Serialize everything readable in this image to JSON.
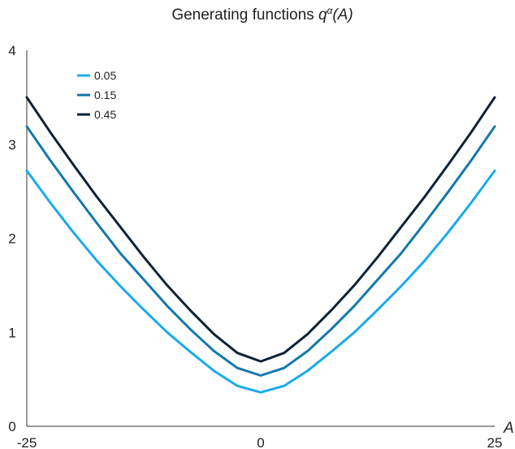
{
  "chart_data": {
    "type": "line",
    "title_main": "Generating functions ",
    "title_func": "q",
    "title_sup": "α",
    "title_arg": "(A)",
    "xlabel": "A",
    "ylabel": "",
    "xlim": [
      -25,
      25
    ],
    "ylim": [
      0,
      4
    ],
    "x_ticks": [
      "-25",
      "0",
      "25"
    ],
    "y_ticks": [
      "0",
      "1",
      "2",
      "3",
      "4"
    ],
    "grid": false,
    "legend_position": "top-left",
    "x": [
      -25,
      -22.5,
      -20,
      -17.5,
      -15,
      -12.5,
      -10,
      -7.5,
      -5,
      -2.5,
      0,
      2.5,
      5,
      7.5,
      10,
      12.5,
      15,
      17.5,
      20,
      22.5,
      25
    ],
    "series": [
      {
        "name": "0.05",
        "color": "#1aabe8",
        "values": [
          2.72,
          2.38,
          2.06,
          1.76,
          1.49,
          1.24,
          1.0,
          0.79,
          0.59,
          0.43,
          0.36,
          0.43,
          0.59,
          0.79,
          1.0,
          1.24,
          1.49,
          1.76,
          2.06,
          2.38,
          2.72
        ]
      },
      {
        "name": "0.15",
        "color": "#1478ad",
        "values": [
          3.19,
          2.83,
          2.49,
          2.16,
          1.84,
          1.56,
          1.28,
          1.03,
          0.8,
          0.62,
          0.54,
          0.62,
          0.8,
          1.03,
          1.28,
          1.56,
          1.84,
          2.16,
          2.49,
          2.83,
          3.19
        ]
      },
      {
        "name": "0.45",
        "color": "#0e2238",
        "values": [
          3.5,
          3.13,
          2.78,
          2.44,
          2.12,
          1.8,
          1.5,
          1.23,
          0.98,
          0.78,
          0.69,
          0.78,
          0.98,
          1.23,
          1.5,
          1.8,
          2.12,
          2.44,
          2.78,
          3.13,
          3.5
        ]
      }
    ]
  }
}
